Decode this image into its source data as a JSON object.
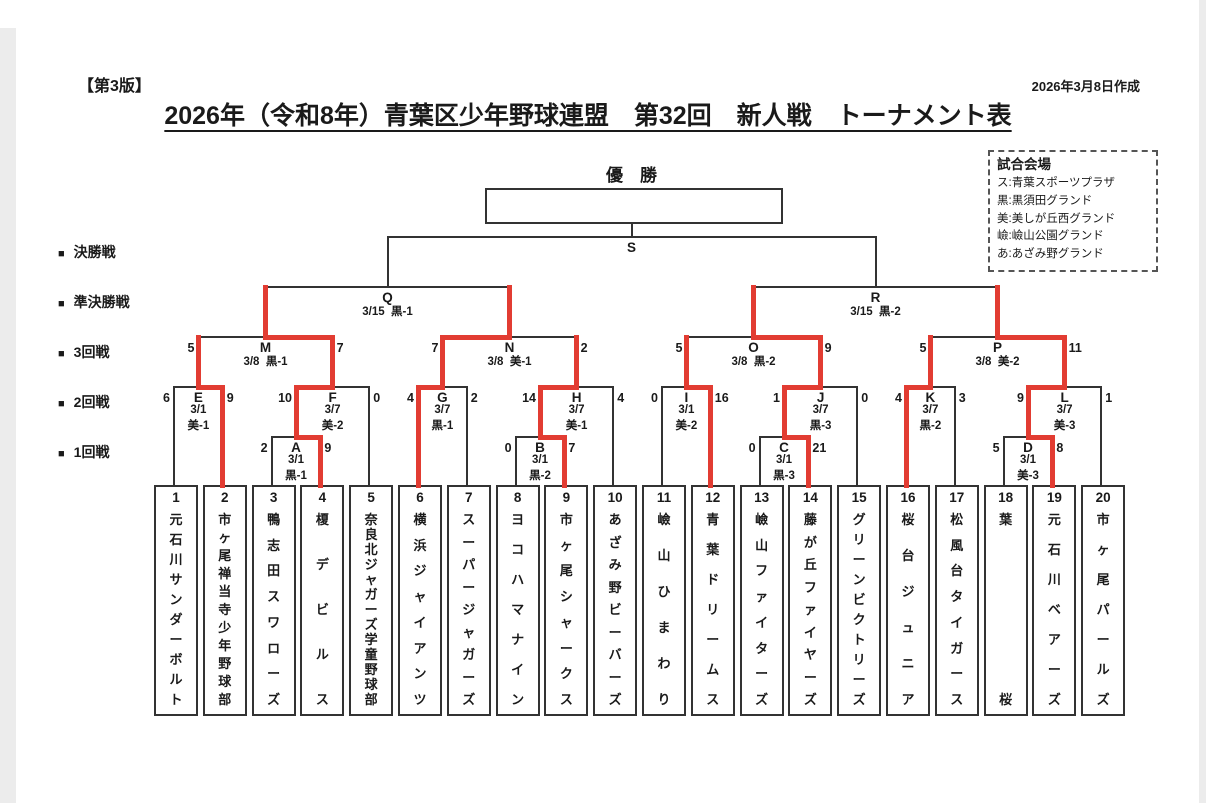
{
  "page": {
    "edition": "【第3版】",
    "created": "2026年3月8日作成",
    "title": "2026年（令和8年）青葉区少年野球連盟　第32回　新人戦　トーナメント表"
  },
  "champion_label": "優　勝",
  "rounds_bullet": "■",
  "rounds_legend": [
    "決勝戦",
    "準決勝戦",
    "3回戦",
    "2回戦",
    "1回戦"
  ],
  "venues": {
    "title": "試合会場",
    "items": [
      "ス:青葉スポーツプラザ",
      "黒:黒須田グランド",
      "美:美しが丘西グランド",
      "嶮:嶮山公園グランド",
      "あ:あざみ野グランド"
    ]
  },
  "teams": [
    {
      "no": "1",
      "name": "元石川サンダーボルト"
    },
    {
      "no": "2",
      "name": "市ヶ尾禅当寺少年野球部"
    },
    {
      "no": "3",
      "name": "鴨志田スワローズ"
    },
    {
      "no": "4",
      "name": "榎デビルス"
    },
    {
      "no": "5",
      "name": "奈良北ジャガーズ学童野球部"
    },
    {
      "no": "6",
      "name": "横浜ジャイアンツ"
    },
    {
      "no": "7",
      "name": "スーパージャガーズ"
    },
    {
      "no": "8",
      "name": "ヨコハマナイン"
    },
    {
      "no": "9",
      "name": "市ヶ尾シャークス"
    },
    {
      "no": "10",
      "name": "あざみ野ビーバーズ"
    },
    {
      "no": "11",
      "name": "嶮山ひまわり"
    },
    {
      "no": "12",
      "name": "青葉ドリームス"
    },
    {
      "no": "13",
      "name": "嶮山ファイターズ"
    },
    {
      "no": "14",
      "name": "藤が丘ファイヤーズ"
    },
    {
      "no": "15",
      "name": "グリーンビクトリーズ"
    },
    {
      "no": "16",
      "name": "桜台ジュニア"
    },
    {
      "no": "17",
      "name": "松風台タイガース"
    },
    {
      "no": "18",
      "name": "葉桜"
    },
    {
      "no": "19",
      "name": "元石川ベアーズ"
    },
    {
      "no": "20",
      "name": "市ヶ尾パールズ"
    }
  ],
  "matches": [
    {
      "letter": "A",
      "round": 1,
      "feeds": [
        "T3",
        "T4"
      ],
      "scores": [
        "2",
        "9"
      ],
      "date": "3/1",
      "venue": "黒-1",
      "winner": "R"
    },
    {
      "letter": "B",
      "round": 1,
      "feeds": [
        "T8",
        "T9"
      ],
      "scores": [
        "0",
        "7"
      ],
      "date": "3/1",
      "venue": "黒-2",
      "winner": "R"
    },
    {
      "letter": "C",
      "round": 1,
      "feeds": [
        "T13",
        "T14"
      ],
      "scores": [
        "0",
        "21"
      ],
      "date": "3/1",
      "venue": "黒-3",
      "winner": "R"
    },
    {
      "letter": "D",
      "round": 1,
      "feeds": [
        "T18",
        "T19"
      ],
      "scores": [
        "5",
        "8"
      ],
      "date": "3/1",
      "venue": "美-3",
      "winner": "R"
    },
    {
      "letter": "E",
      "round": 2,
      "feeds": [
        "T1",
        "T2"
      ],
      "scores": [
        "6",
        "9"
      ],
      "date": "3/1",
      "venue": "美-1",
      "winner": "R"
    },
    {
      "letter": "F",
      "round": 2,
      "feeds": [
        "A",
        "T5"
      ],
      "scores": [
        "10",
        "0"
      ],
      "date": "3/7",
      "venue": "美-2",
      "winner": "L"
    },
    {
      "letter": "G",
      "round": 2,
      "feeds": [
        "T6",
        "T7"
      ],
      "scores": [
        "4",
        "2"
      ],
      "date": "3/7",
      "venue": "黒-1",
      "winner": "L"
    },
    {
      "letter": "H",
      "round": 2,
      "feeds": [
        "B",
        "T10"
      ],
      "scores": [
        "14",
        "4"
      ],
      "date": "3/7",
      "venue": "美-1",
      "winner": "L"
    },
    {
      "letter": "I",
      "round": 2,
      "feeds": [
        "T11",
        "T12"
      ],
      "scores": [
        "0",
        "16"
      ],
      "date": "3/1",
      "venue": "美-2",
      "winner": "R"
    },
    {
      "letter": "J",
      "round": 2,
      "feeds": [
        "C",
        "T15"
      ],
      "scores": [
        "1",
        "0"
      ],
      "date": "3/7",
      "venue": "黒-3",
      "winner": "L"
    },
    {
      "letter": "K",
      "round": 2,
      "feeds": [
        "T16",
        "T17"
      ],
      "scores": [
        "4",
        "3"
      ],
      "date": "3/7",
      "venue": "黒-2",
      "winner": "L"
    },
    {
      "letter": "L",
      "round": 2,
      "feeds": [
        "D",
        "T20"
      ],
      "scores": [
        "9",
        "1"
      ],
      "date": "3/7",
      "venue": "美-3",
      "winner": "L"
    },
    {
      "letter": "M",
      "round": 3,
      "feeds": [
        "E",
        "F"
      ],
      "scores": [
        "5",
        "7"
      ],
      "date": "3/8",
      "venue": "黒-1",
      "winner": "R"
    },
    {
      "letter": "N",
      "round": 3,
      "feeds": [
        "G",
        "H"
      ],
      "scores": [
        "7",
        "2"
      ],
      "date": "3/8",
      "venue": "美-1",
      "winner": "L"
    },
    {
      "letter": "O",
      "round": 3,
      "feeds": [
        "I",
        "J"
      ],
      "scores": [
        "5",
        "9"
      ],
      "date": "3/8",
      "venue": "黒-2",
      "winner": "R"
    },
    {
      "letter": "P",
      "round": 3,
      "feeds": [
        "K",
        "L"
      ],
      "scores": [
        "5",
        "11"
      ],
      "date": "3/8",
      "venue": "美-2",
      "winner": "R"
    },
    {
      "letter": "Q",
      "round": 4,
      "feeds": [
        "M",
        "N"
      ],
      "scores": null,
      "date": "3/15",
      "venue": "黒-1",
      "winner": null
    },
    {
      "letter": "R",
      "round": 4,
      "feeds": [
        "O",
        "P"
      ],
      "scores": null,
      "date": "3/15",
      "venue": "黒-2",
      "winner": null
    },
    {
      "letter": "S",
      "round": 5,
      "feeds": [
        "Q",
        "R"
      ],
      "scores": null,
      "date": null,
      "venue": null,
      "winner": null
    }
  ],
  "colors": {
    "winner_path": "#e23c32",
    "line": "#333333"
  }
}
